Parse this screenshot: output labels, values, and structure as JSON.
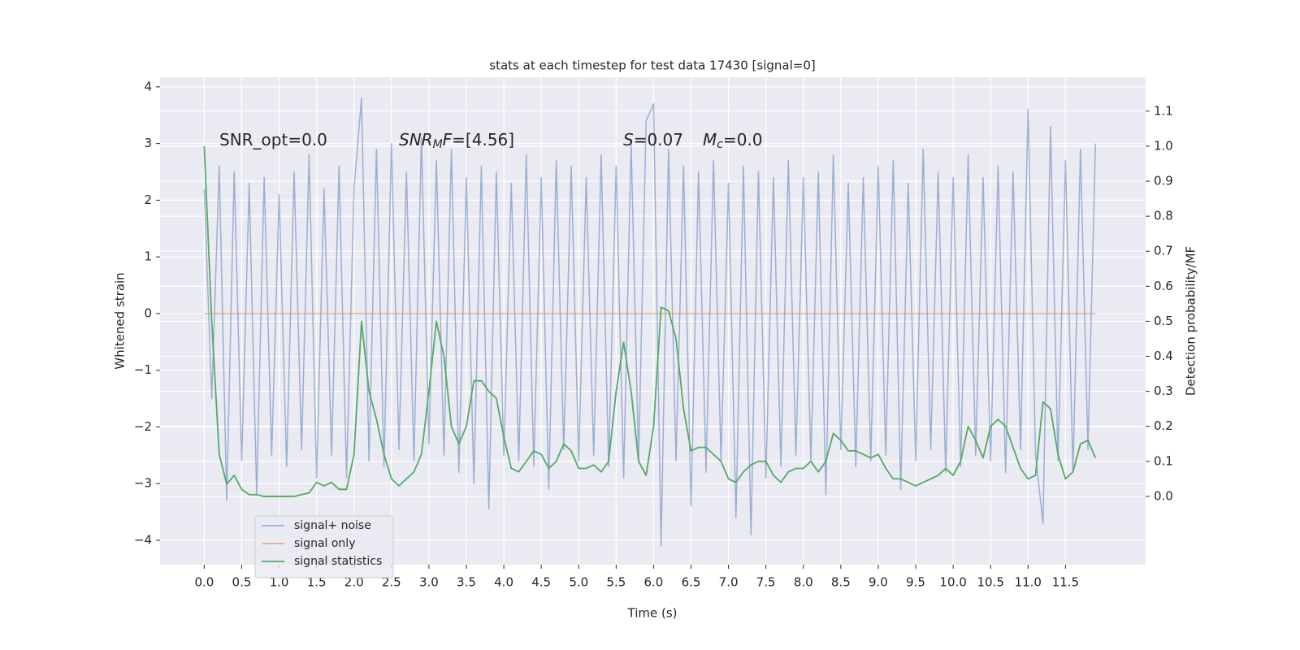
{
  "chart_data": {
    "type": "line",
    "title": "stats at each timestep for test data 17430 [signal=0]",
    "xlabel": "Time (s)",
    "ylabel": "Whitened strain",
    "y2label": "Detection probability/MF",
    "grid": true,
    "legend": "lower left",
    "annotations": [
      [
        "SNR_opt=0.0"
      ],
      [
        "SNR",
        "M",
        "F",
        "=[4.56]"
      ],
      [
        "S",
        "=0.07",
        "M",
        "c",
        "=0.0"
      ]
    ],
    "xlim": [
      -0.59,
      12.57
    ],
    "ylim": [
      -4.43,
      4.17
    ],
    "y2lim": [
      -0.195,
      1.197
    ],
    "xticks": [
      {
        "value": 0,
        "label": "0.0"
      },
      0.5,
      {
        "value": 1,
        "label": "1.0"
      },
      1.5,
      {
        "value": 2,
        "label": "2.0"
      },
      2.5,
      {
        "value": 3,
        "label": "3.0"
      },
      3.5,
      {
        "value": 4,
        "label": "4.0"
      },
      4.5,
      {
        "value": 5,
        "label": "5.0"
      },
      5.5,
      {
        "value": 6,
        "label": "6.0"
      },
      6.5,
      {
        "value": 7,
        "label": "7.0"
      },
      7.5,
      {
        "value": 8,
        "label": "8.0"
      },
      8.5,
      {
        "value": 9,
        "label": "9.0"
      },
      9.5,
      {
        "value": 10,
        "label": "10.0"
      },
      10.5,
      {
        "value": 11,
        "label": "11.0"
      },
      11.5
    ],
    "yticks": [
      {
        "value": -4,
        "label": "−4"
      },
      {
        "value": -3,
        "label": "−3"
      },
      {
        "value": -2,
        "label": "−2"
      },
      {
        "value": -1,
        "label": "−1"
      },
      0,
      1,
      2,
      3,
      4
    ],
    "y2ticks": [
      {
        "value": 0,
        "label": "0.0"
      },
      0.1,
      0.2,
      0.3,
      0.4,
      0.5,
      0.6,
      0.7,
      0.8,
      0.9,
      {
        "value": 1,
        "label": "1.0"
      },
      1.1
    ],
    "x": [
      0,
      0.1,
      0.2,
      0.3,
      0.4,
      0.5,
      0.6,
      0.7,
      0.8,
      0.9,
      1,
      1.1,
      1.2,
      1.3,
      1.4,
      1.5,
      1.6,
      1.7,
      1.8,
      1.9,
      2,
      2.1,
      2.2,
      2.3,
      2.4,
      2.5,
      2.6,
      2.7,
      2.8,
      2.9,
      3,
      3.1,
      3.2,
      3.3,
      3.4,
      3.5,
      3.6,
      3.7,
      3.8,
      3.9,
      4,
      4.1,
      4.2,
      4.3,
      4.4,
      4.5,
      4.6,
      4.7,
      4.8,
      4.9,
      5,
      5.1,
      5.2,
      5.3,
      5.4,
      5.5,
      5.6,
      5.7,
      5.8,
      5.9,
      6,
      6.1,
      6.2,
      6.3,
      6.4,
      6.5,
      6.6,
      6.7,
      6.8,
      6.9,
      7,
      7.1,
      7.2,
      7.3,
      7.4,
      7.5,
      7.6,
      7.7,
      7.8,
      7.9,
      8,
      8.1,
      8.2,
      8.3,
      8.4,
      8.5,
      8.6,
      8.7,
      8.8,
      8.9,
      9,
      9.1,
      9.2,
      9.3,
      9.4,
      9.5,
      9.6,
      9.7,
      9.8,
      9.9,
      10,
      10.1,
      10.2,
      10.3,
      10.4,
      10.5,
      10.6,
      10.7,
      10.8,
      10.9,
      11,
      11.1,
      11.2,
      11.3,
      11.4,
      11.5,
      11.6,
      11.7,
      11.8,
      11.9
    ],
    "series": [
      {
        "name": "signal+ noise",
        "color": "#4c72b0",
        "opacity": 0.5,
        "values": [
          2.2,
          -1.5,
          2.6,
          -3.3,
          2.5,
          -2.6,
          2.3,
          -3.2,
          2.4,
          -2.5,
          2.1,
          -2.7,
          2.5,
          -2.4,
          2.8,
          -2.9,
          2.2,
          -2.5,
          2.6,
          -2.9,
          2.2,
          3.8,
          -2.6,
          2.9,
          -2.7,
          3.0,
          -2.4,
          2.5,
          -2.6,
          3.1,
          -2.3,
          2.7,
          -2.5,
          2.9,
          -2.8,
          2.4,
          -3.0,
          2.6,
          -3.45,
          2.5,
          -2.5,
          2.3,
          -2.6,
          2.8,
          -2.7,
          2.4,
          -3.1,
          2.7,
          -2.4,
          2.6,
          -2.6,
          2.4,
          -2.5,
          2.8,
          -2.7,
          2.6,
          -2.9,
          3.0,
          -2.6,
          3.4,
          3.7,
          -4.1,
          2.9,
          -2.6,
          2.6,
          -3.4,
          2.5,
          -2.8,
          2.7,
          -2.6,
          2.3,
          -3.6,
          2.6,
          -3.9,
          2.5,
          -2.9,
          2.4,
          -2.7,
          2.7,
          -2.5,
          2.4,
          -2.6,
          2.5,
          -3.2,
          2.8,
          -2.4,
          2.3,
          -2.7,
          2.4,
          -2.6,
          2.6,
          -2.5,
          2.7,
          -3.1,
          2.3,
          -2.6,
          2.9,
          -2.4,
          2.5,
          -2.8,
          2.4,
          -2.7,
          2.8,
          -2.5,
          2.4,
          -2.6,
          2.6,
          -2.8,
          2.5,
          -2.4,
          3.6,
          -2.5,
          -3.7,
          3.3,
          -2.6,
          2.7,
          -2.8,
          2.9,
          -2.4,
          3.0
        ]
      },
      {
        "name": "signal only",
        "color": "#dd8452",
        "opacity": 0.6,
        "values": [
          0,
          0,
          0,
          0,
          0,
          0,
          0,
          0,
          0,
          0,
          0,
          0,
          0,
          0,
          0,
          0,
          0,
          0,
          0,
          0,
          0,
          0,
          0,
          0,
          0,
          0,
          0,
          0,
          0,
          0,
          0,
          0,
          0,
          0,
          0,
          0,
          0,
          0,
          0,
          0,
          0,
          0,
          0,
          0,
          0,
          0,
          0,
          0,
          0,
          0,
          0,
          0,
          0,
          0,
          0,
          0,
          0,
          0,
          0,
          0,
          0,
          0,
          0,
          0,
          0,
          0,
          0,
          0,
          0,
          0,
          0,
          0,
          0,
          0,
          0,
          0,
          0,
          0,
          0,
          0,
          0,
          0,
          0,
          0,
          0,
          0,
          0,
          0,
          0,
          0,
          0,
          0,
          0,
          0,
          0,
          0,
          0,
          0,
          0,
          0,
          0,
          0,
          0,
          0,
          0,
          0,
          0,
          0,
          0,
          0,
          0,
          0,
          0,
          0,
          0,
          0,
          0,
          0,
          0,
          0
        ]
      },
      {
        "name": "signal statistics",
        "color": "#55a868",
        "opacity": 1,
        "axis": "y2",
        "values": [
          1.0,
          0.5,
          0.12,
          0.035,
          0.06,
          0.02,
          0.005,
          0.005,
          0,
          0,
          0,
          0,
          0,
          0.005,
          0.01,
          0.04,
          0.03,
          0.04,
          0.02,
          0.02,
          0.12,
          0.5,
          0.3,
          0.22,
          0.12,
          0.05,
          0.03,
          0.05,
          0.07,
          0.12,
          0.3,
          0.5,
          0.4,
          0.2,
          0.15,
          0.2,
          0.33,
          0.33,
          0.3,
          0.28,
          0.17,
          0.08,
          0.07,
          0.1,
          0.13,
          0.12,
          0.08,
          0.1,
          0.15,
          0.13,
          0.08,
          0.08,
          0.09,
          0.07,
          0.1,
          0.3,
          0.44,
          0.3,
          0.1,
          0.06,
          0.2,
          0.54,
          0.53,
          0.45,
          0.25,
          0.13,
          0.14,
          0.14,
          0.12,
          0.1,
          0.05,
          0.04,
          0.07,
          0.09,
          0.1,
          0.1,
          0.06,
          0.04,
          0.07,
          0.08,
          0.08,
          0.1,
          0.07,
          0.1,
          0.18,
          0.16,
          0.13,
          0.13,
          0.12,
          0.11,
          0.12,
          0.08,
          0.05,
          0.05,
          0.04,
          0.03,
          0.04,
          0.05,
          0.06,
          0.08,
          0.06,
          0.1,
          0.2,
          0.16,
          0.11,
          0.2,
          0.22,
          0.2,
          0.14,
          0.08,
          0.05,
          0.06,
          0.27,
          0.25,
          0.12,
          0.05,
          0.07,
          0.15,
          0.16,
          0.11
        ]
      }
    ]
  }
}
